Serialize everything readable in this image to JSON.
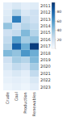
{
  "chart_data": {
    "type": "heatmap",
    "categories": [
      "Crude",
      "Coal",
      "Production",
      "Renewables"
    ],
    "rows": [
      "2011",
      "2012",
      "2013",
      "2014",
      "2015",
      "2016",
      "2017",
      "2018",
      "2019",
      "2020",
      "2021",
      "2022",
      "2023"
    ],
    "cells": [
      [
        10,
        15,
        10,
        12
      ],
      [
        12,
        30,
        15,
        20
      ],
      [
        15,
        70,
        25,
        20
      ],
      [
        40,
        20,
        30,
        25
      ],
      [
        20,
        25,
        45,
        30
      ],
      [
        25,
        55,
        35,
        40
      ],
      [
        30,
        80,
        50,
        95
      ],
      [
        45,
        40,
        60,
        50
      ],
      [
        20,
        35,
        30,
        45
      ],
      [
        15,
        25,
        20,
        35
      ],
      [
        10,
        15,
        10,
        25
      ],
      [
        8,
        10,
        8,
        15
      ],
      [
        5,
        8,
        5,
        10
      ]
    ],
    "color": "Blues",
    "color_range": [
      0,
      100
    ],
    "color_ticks": [
      20,
      40,
      60,
      80
    ]
  }
}
